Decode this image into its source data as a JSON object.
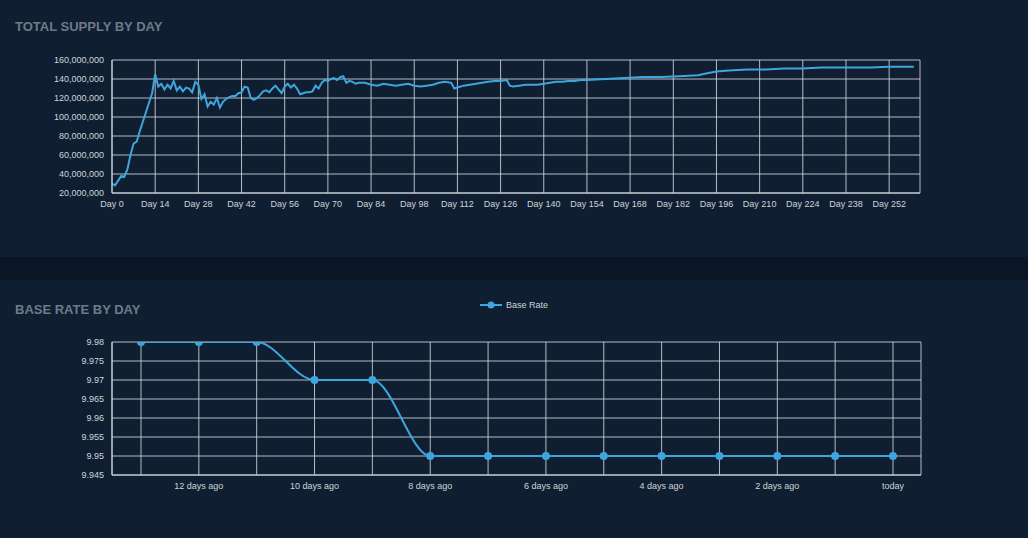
{
  "chart_data": [
    {
      "type": "line",
      "title": "TOTAL SUPPLY BY DAY",
      "x": [
        0,
        1,
        2,
        3,
        4,
        5,
        6,
        7,
        8,
        9,
        10,
        11,
        12,
        13,
        14,
        15,
        16,
        17,
        18,
        19,
        20,
        21,
        22,
        23,
        24,
        25,
        26,
        27,
        28,
        29,
        30,
        31,
        32,
        33,
        34,
        35,
        36,
        37,
        38,
        39,
        40,
        41,
        42,
        43,
        44,
        45,
        46,
        47,
        48,
        49,
        50,
        51,
        52,
        53,
        54,
        55,
        56,
        57,
        58,
        59,
        60,
        61,
        62,
        63,
        64,
        65,
        66,
        67,
        68,
        69,
        70,
        71,
        72,
        73,
        74,
        75,
        76,
        77,
        78,
        79,
        80,
        82,
        84,
        86,
        88,
        90,
        92,
        94,
        96,
        98,
        100,
        102,
        104,
        106,
        108,
        110,
        111,
        112,
        114,
        116,
        118,
        120,
        122,
        124,
        126,
        128,
        129,
        130,
        132,
        134,
        136,
        138,
        140,
        142,
        144,
        146,
        148,
        150,
        152,
        154,
        160,
        166,
        172,
        178,
        184,
        190,
        193,
        196,
        200,
        206,
        212,
        218,
        224,
        230,
        238,
        246,
        252,
        260
      ],
      "series": [
        {
          "color": "#3ea6de",
          "values": [
            30000000,
            28000000,
            33000000,
            38000000,
            37000000,
            45000000,
            60000000,
            72000000,
            74000000,
            85000000,
            95000000,
            105000000,
            115000000,
            125000000,
            145000000,
            132000000,
            135000000,
            129000000,
            134000000,
            130000000,
            138000000,
            128000000,
            132000000,
            127000000,
            131000000,
            130000000,
            126000000,
            137000000,
            134000000,
            119000000,
            124000000,
            111000000,
            116000000,
            113000000,
            120000000,
            110000000,
            116000000,
            119000000,
            121000000,
            122000000,
            122000000,
            125000000,
            126000000,
            132000000,
            131000000,
            120000000,
            118000000,
            120000000,
            123000000,
            127000000,
            128000000,
            126000000,
            130000000,
            133000000,
            129000000,
            125000000,
            132000000,
            135000000,
            131000000,
            134000000,
            130000000,
            124000000,
            125000000,
            126000000,
            126000000,
            127000000,
            133000000,
            130000000,
            136000000,
            139000000,
            138000000,
            140000000,
            141000000,
            139000000,
            142000000,
            143000000,
            136000000,
            138000000,
            137000000,
            135000000,
            136000000,
            136000000,
            134000000,
            133000000,
            135000000,
            134000000,
            133000000,
            134000000,
            135000000,
            133000000,
            132000000,
            133000000,
            134000000,
            136000000,
            137000000,
            136000000,
            130000000,
            131000000,
            133000000,
            134000000,
            135000000,
            136000000,
            137000000,
            138000000,
            138000000,
            139000000,
            133000000,
            132000000,
            133000000,
            134000000,
            134000000,
            134000000,
            135000000,
            136000000,
            137000000,
            137000000,
            138000000,
            138000000,
            139000000,
            139000000,
            140000000,
            141000000,
            142000000,
            142000000,
            143000000,
            144000000,
            146000000,
            148000000,
            149000000,
            150000000,
            150000000,
            151000000,
            151000000,
            152000000,
            152000000,
            152000000,
            153000000,
            153000000
          ]
        }
      ],
      "xlim": [
        0,
        262
      ],
      "xticks": [
        {
          "value": 0,
          "label": "Day 0"
        },
        {
          "value": 14,
          "label": "Day 14"
        },
        {
          "value": 28,
          "label": "Day 28"
        },
        {
          "value": 42,
          "label": "Day 42"
        },
        {
          "value": 56,
          "label": "Day 56"
        },
        {
          "value": 70,
          "label": "Day 70"
        },
        {
          "value": 84,
          "label": "Day 84"
        },
        {
          "value": 98,
          "label": "Day 98"
        },
        {
          "value": 112,
          "label": "Day 112"
        },
        {
          "value": 126,
          "label": "Day 126"
        },
        {
          "value": 140,
          "label": "Day 140"
        },
        {
          "value": 154,
          "label": "Day 154"
        },
        {
          "value": 168,
          "label": "Day 168"
        },
        {
          "value": 182,
          "label": "Day 182"
        },
        {
          "value": 196,
          "label": "Day 196"
        },
        {
          "value": 210,
          "label": "Day 210"
        },
        {
          "value": 224,
          "label": "Day 224"
        },
        {
          "value": 238,
          "label": "Day 238"
        },
        {
          "value": 252,
          "label": "Day 252"
        }
      ],
      "ylim": [
        20000000,
        160000000
      ],
      "yticks": [
        {
          "value": 20000000,
          "label": "20,000,000"
        },
        {
          "value": 40000000,
          "label": "40,000,000"
        },
        {
          "value": 60000000,
          "label": "60,000,000"
        },
        {
          "value": 80000000,
          "label": "80,000,000"
        },
        {
          "value": 100000000,
          "label": "100,000,000"
        },
        {
          "value": 120000000,
          "label": "120,000,000"
        },
        {
          "value": 140000000,
          "label": "140,000,000"
        },
        {
          "value": 160000000,
          "label": "160,000,000"
        }
      ],
      "grid": true
    },
    {
      "type": "line",
      "title": "BASE RATE BY DAY",
      "categories": [
        null,
        "12 days ago",
        null,
        "10 days ago",
        null,
        "8 days ago",
        null,
        "6 days ago",
        null,
        "4 days ago",
        null,
        "2 days ago",
        null,
        "today"
      ],
      "series": [
        {
          "name": "Base Rate",
          "color": "#3ea6de",
          "marker": "circle",
          "line_style": "smooth",
          "values": [
            9.98,
            9.98,
            9.98,
            9.97,
            9.97,
            9.95,
            9.95,
            9.95,
            9.95,
            9.95,
            9.95,
            9.95,
            9.95,
            9.95
          ]
        }
      ],
      "ylim": [
        9.945,
        9.98
      ],
      "yticks": [
        9.945,
        9.95,
        9.955,
        9.96,
        9.965,
        9.97,
        9.975,
        9.98
      ],
      "grid": true,
      "legend": "top"
    }
  ]
}
